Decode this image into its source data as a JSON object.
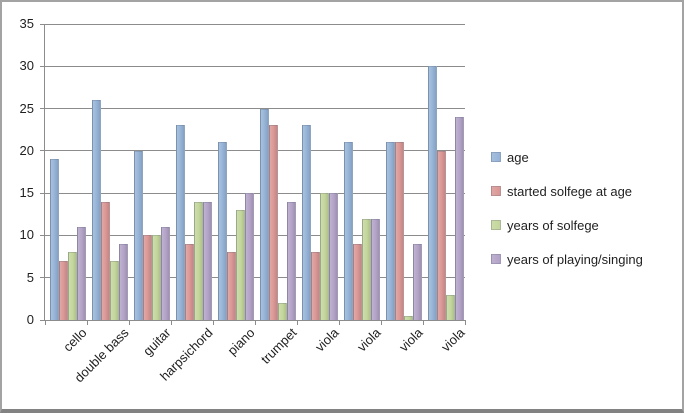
{
  "chart_data": {
    "type": "bar",
    "title": "",
    "xlabel": "",
    "ylabel": "",
    "categories": [
      "cello",
      "double bass",
      "guitar",
      "harpsichord",
      "piano",
      "trumpet",
      "viola",
      "viola",
      "viola",
      "viola"
    ],
    "series": [
      {
        "name": "age",
        "color": "#95B3D7",
        "values": [
          19,
          26,
          20,
          23,
          21,
          25,
          23,
          21,
          21,
          30
        ]
      },
      {
        "name": "started solfege at age",
        "color": "#D99694",
        "values": [
          7,
          14,
          10,
          9,
          8,
          23,
          8,
          9,
          21,
          20
        ]
      },
      {
        "name": "years of solfege",
        "color": "#C3D69B",
        "values": [
          8,
          7,
          10,
          14,
          13,
          2,
          15,
          12,
          0.5,
          3
        ]
      },
      {
        "name": "years of playing/singing",
        "color": "#B2A2C7",
        "values": [
          11,
          9,
          11,
          14,
          15,
          14,
          15,
          12,
          9,
          24
        ]
      }
    ],
    "ylim": [
      0,
      35
    ],
    "ytick_interval": 5,
    "ytick_labels": [
      "35",
      "30",
      "25",
      "20",
      "15",
      "10",
      "5",
      "0"
    ],
    "grid": true,
    "legend_position": "right"
  },
  "colors": {
    "gridline": "#8c8c8c",
    "axis": "#8c8c8c",
    "text": "#1f1f1f",
    "frame_border": "#a3a3a3",
    "background": "#ffffff"
  }
}
